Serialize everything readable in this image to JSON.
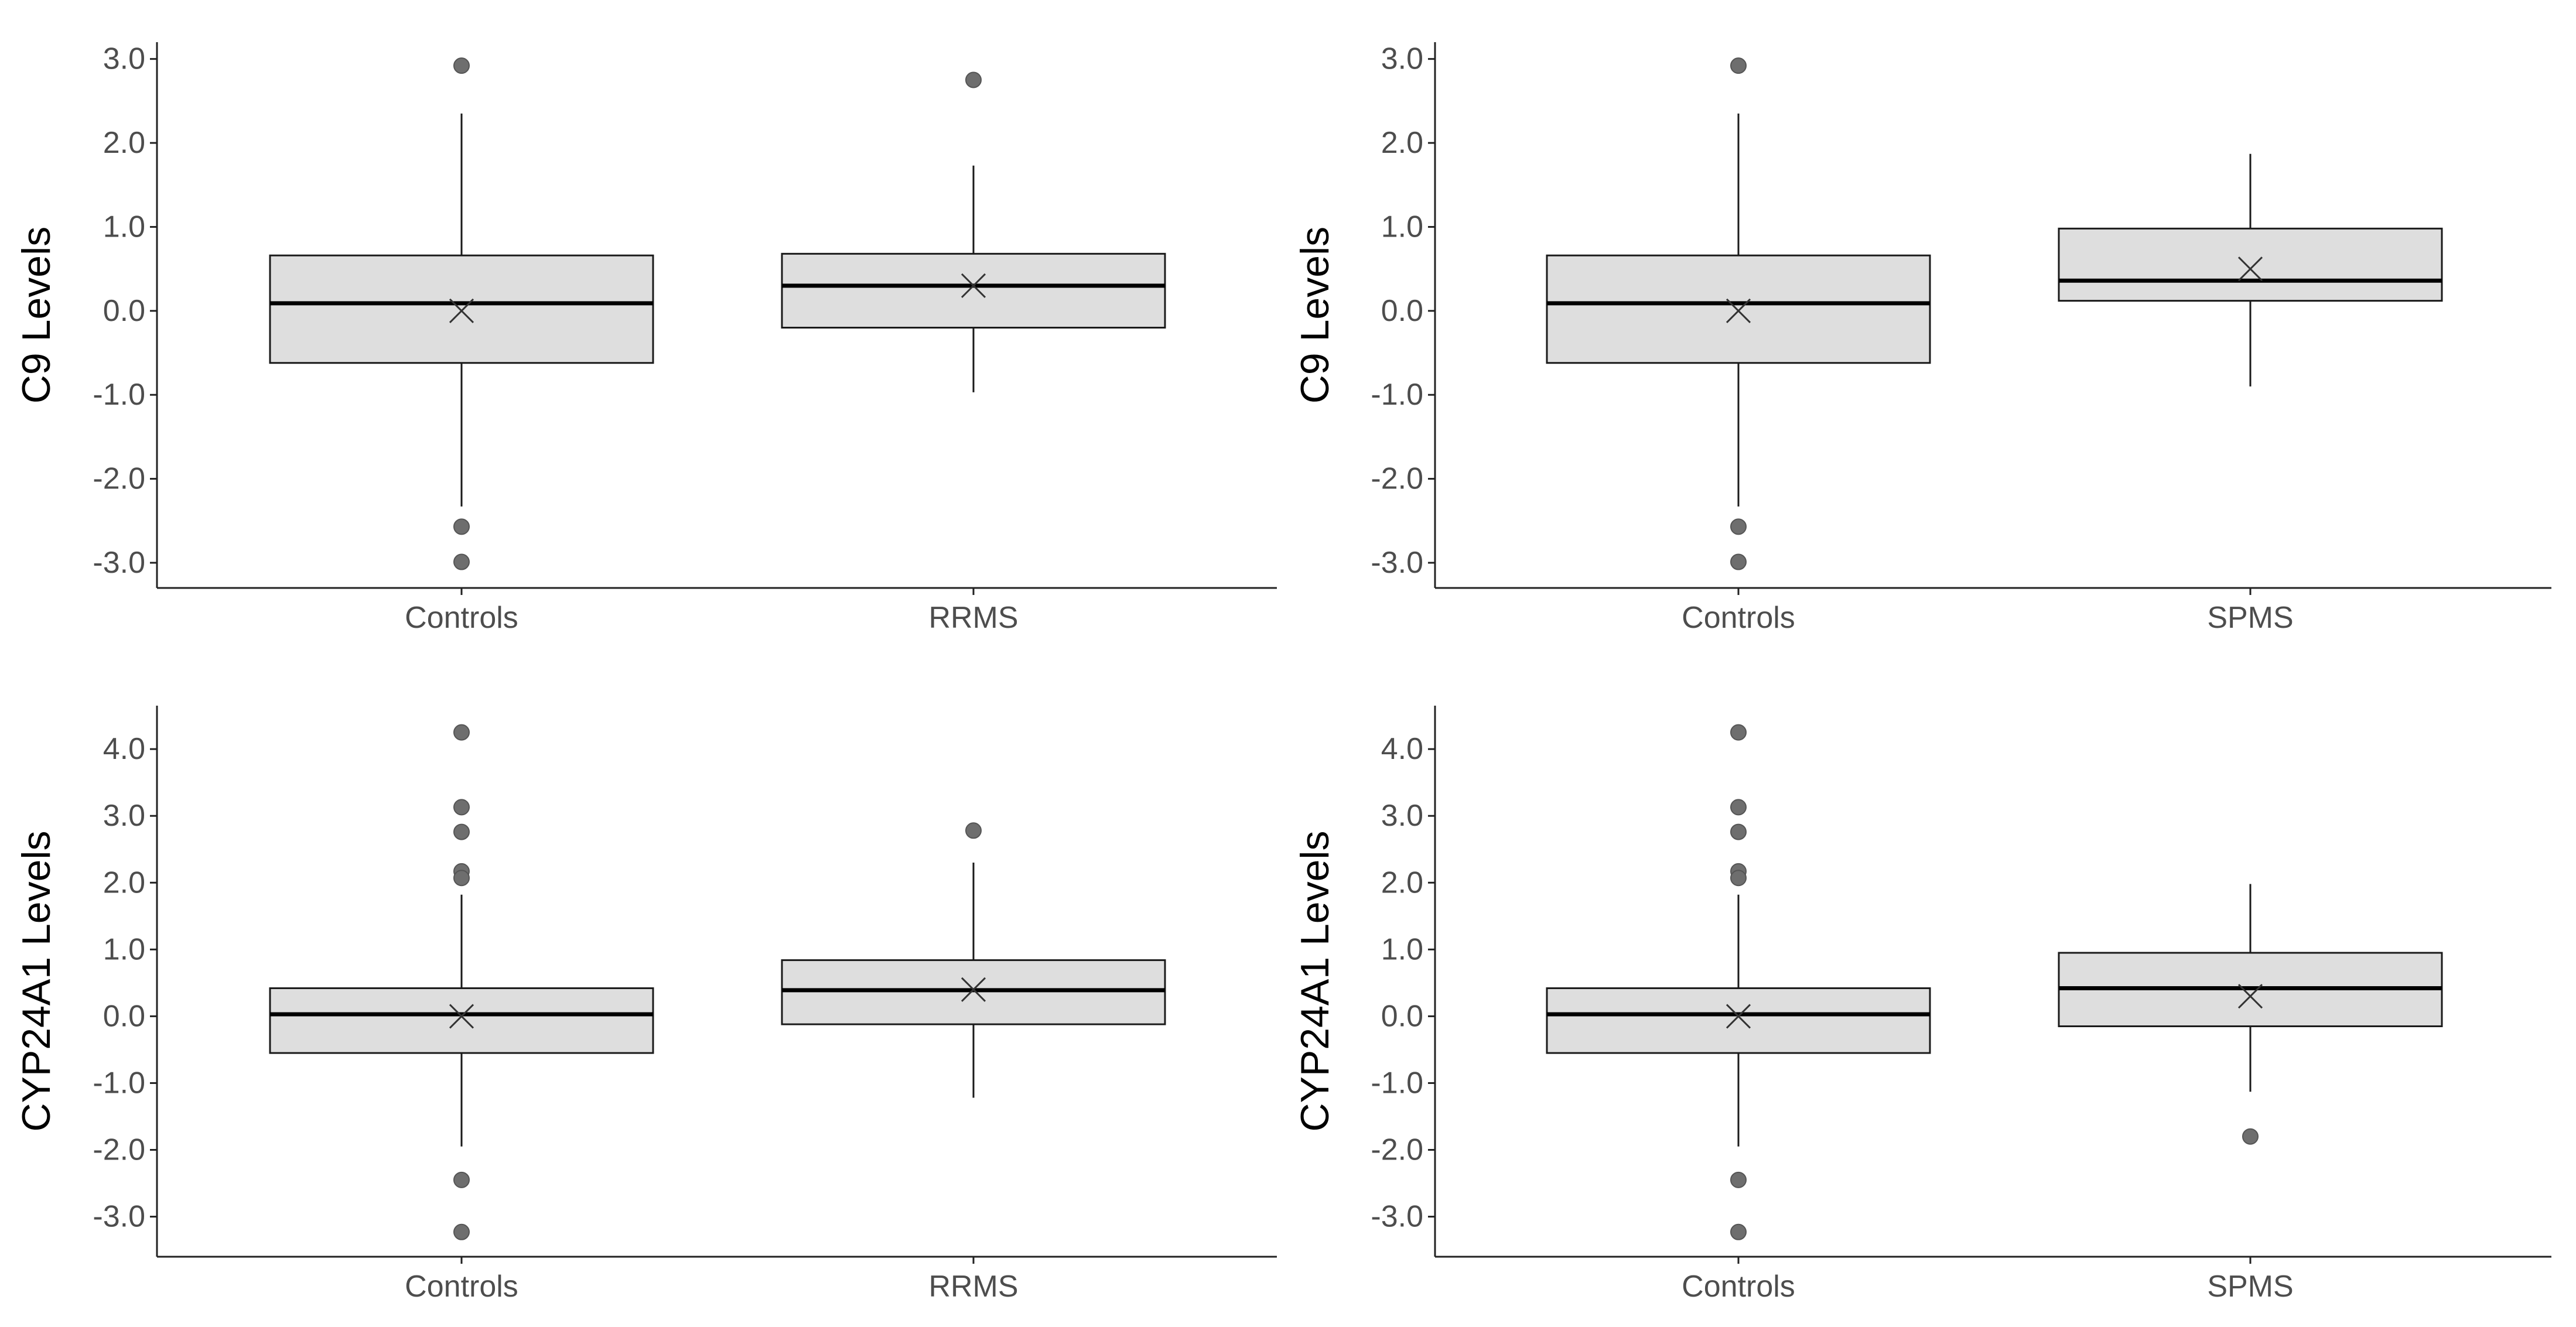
{
  "chart_data": [
    {
      "type": "box",
      "ylabel": "C9 Levels",
      "xlabel": "",
      "ylim": [
        -3.3,
        3.2
      ],
      "yticks": [
        3.0,
        2.0,
        1.0,
        0.0,
        -1.0,
        -2.0,
        -3.0
      ],
      "ytick_labels": [
        "3.0",
        "2.0",
        "1.0",
        "0.0",
        "-1.0",
        "-2.0",
        "-3.0"
      ],
      "categories": [
        "Controls",
        "RRMS"
      ],
      "boxes": [
        {
          "category": "Controls",
          "whisker_low": -2.33,
          "q1": -0.62,
          "median": 0.09,
          "q3": 0.66,
          "whisker_high": 2.35,
          "mean": 0.0,
          "outliers": [
            2.92,
            -2.57,
            -2.99
          ]
        },
        {
          "category": "RRMS",
          "whisker_low": -0.97,
          "q1": -0.2,
          "median": 0.3,
          "q3": 0.68,
          "whisker_high": 1.73,
          "mean": 0.3,
          "outliers": [
            2.75
          ]
        }
      ]
    },
    {
      "type": "box",
      "ylabel": "C9 Levels",
      "xlabel": "",
      "ylim": [
        -3.3,
        3.2
      ],
      "yticks": [
        3.0,
        2.0,
        1.0,
        0.0,
        -1.0,
        -2.0,
        -3.0
      ],
      "ytick_labels": [
        "3.0",
        "2.0",
        "1.0",
        "0.0",
        "-1.0",
        "-2.0",
        "-3.0"
      ],
      "categories": [
        "Controls",
        "SPMS"
      ],
      "boxes": [
        {
          "category": "Controls",
          "whisker_low": -2.33,
          "q1": -0.62,
          "median": 0.09,
          "q3": 0.66,
          "whisker_high": 2.35,
          "mean": 0.0,
          "outliers": [
            2.92,
            -2.57,
            -2.99
          ]
        },
        {
          "category": "SPMS",
          "whisker_low": -0.9,
          "q1": 0.12,
          "median": 0.36,
          "q3": 0.98,
          "whisker_high": 1.87,
          "mean": 0.5,
          "outliers": []
        }
      ]
    },
    {
      "type": "box",
      "ylabel": "CYP24A1 Levels",
      "xlabel": "",
      "ylim": [
        -3.6,
        4.65
      ],
      "yticks": [
        4.0,
        3.0,
        2.0,
        1.0,
        0.0,
        -1.0,
        -2.0,
        -3.0
      ],
      "ytick_labels": [
        "4.0",
        "3.0",
        "2.0",
        "1.0",
        "0.0",
        "-1.0",
        "-2.0",
        "-3.0"
      ],
      "categories": [
        "Controls",
        "RRMS"
      ],
      "boxes": [
        {
          "category": "Controls",
          "whisker_low": -1.95,
          "q1": -0.55,
          "median": 0.03,
          "q3": 0.42,
          "whisker_high": 1.82,
          "mean": 0.0,
          "outliers": [
            4.25,
            3.13,
            2.76,
            2.17,
            2.07,
            -2.45,
            -3.23
          ]
        },
        {
          "category": "RRMS",
          "whisker_low": -1.22,
          "q1": -0.12,
          "median": 0.39,
          "q3": 0.84,
          "whisker_high": 2.3,
          "mean": 0.4,
          "outliers": [
            2.78
          ]
        }
      ]
    },
    {
      "type": "box",
      "ylabel": "CYP24A1 Levels",
      "xlabel": "",
      "ylim": [
        -3.6,
        4.65
      ],
      "yticks": [
        4.0,
        3.0,
        2.0,
        1.0,
        0.0,
        -1.0,
        -2.0,
        -3.0
      ],
      "ytick_labels": [
        "4.0",
        "3.0",
        "2.0",
        "1.0",
        "0.0",
        "-1.0",
        "-2.0",
        "-3.0"
      ],
      "categories": [
        "Controls",
        "SPMS"
      ],
      "boxes": [
        {
          "category": "Controls",
          "whisker_low": -1.95,
          "q1": -0.55,
          "median": 0.03,
          "q3": 0.42,
          "whisker_high": 1.82,
          "mean": 0.0,
          "outliers": [
            4.25,
            3.13,
            2.76,
            2.17,
            2.07,
            -2.45,
            -3.23
          ]
        },
        {
          "category": "SPMS",
          "whisker_low": -1.13,
          "q1": -0.15,
          "median": 0.42,
          "q3": 0.95,
          "whisker_high": 1.98,
          "mean": 0.3,
          "outliers": [
            -1.8
          ]
        }
      ]
    }
  ],
  "style": {
    "box_fill": "#dedede",
    "box_stroke": "#1a1a1a",
    "median_color": "#000000",
    "outlier_fill": "#6e6e6e",
    "mean_marker_color": "#333333",
    "axis_color": "#222222",
    "tick_label_color": "#4d4d4d",
    "grid": false,
    "mean_marker": "x"
  }
}
